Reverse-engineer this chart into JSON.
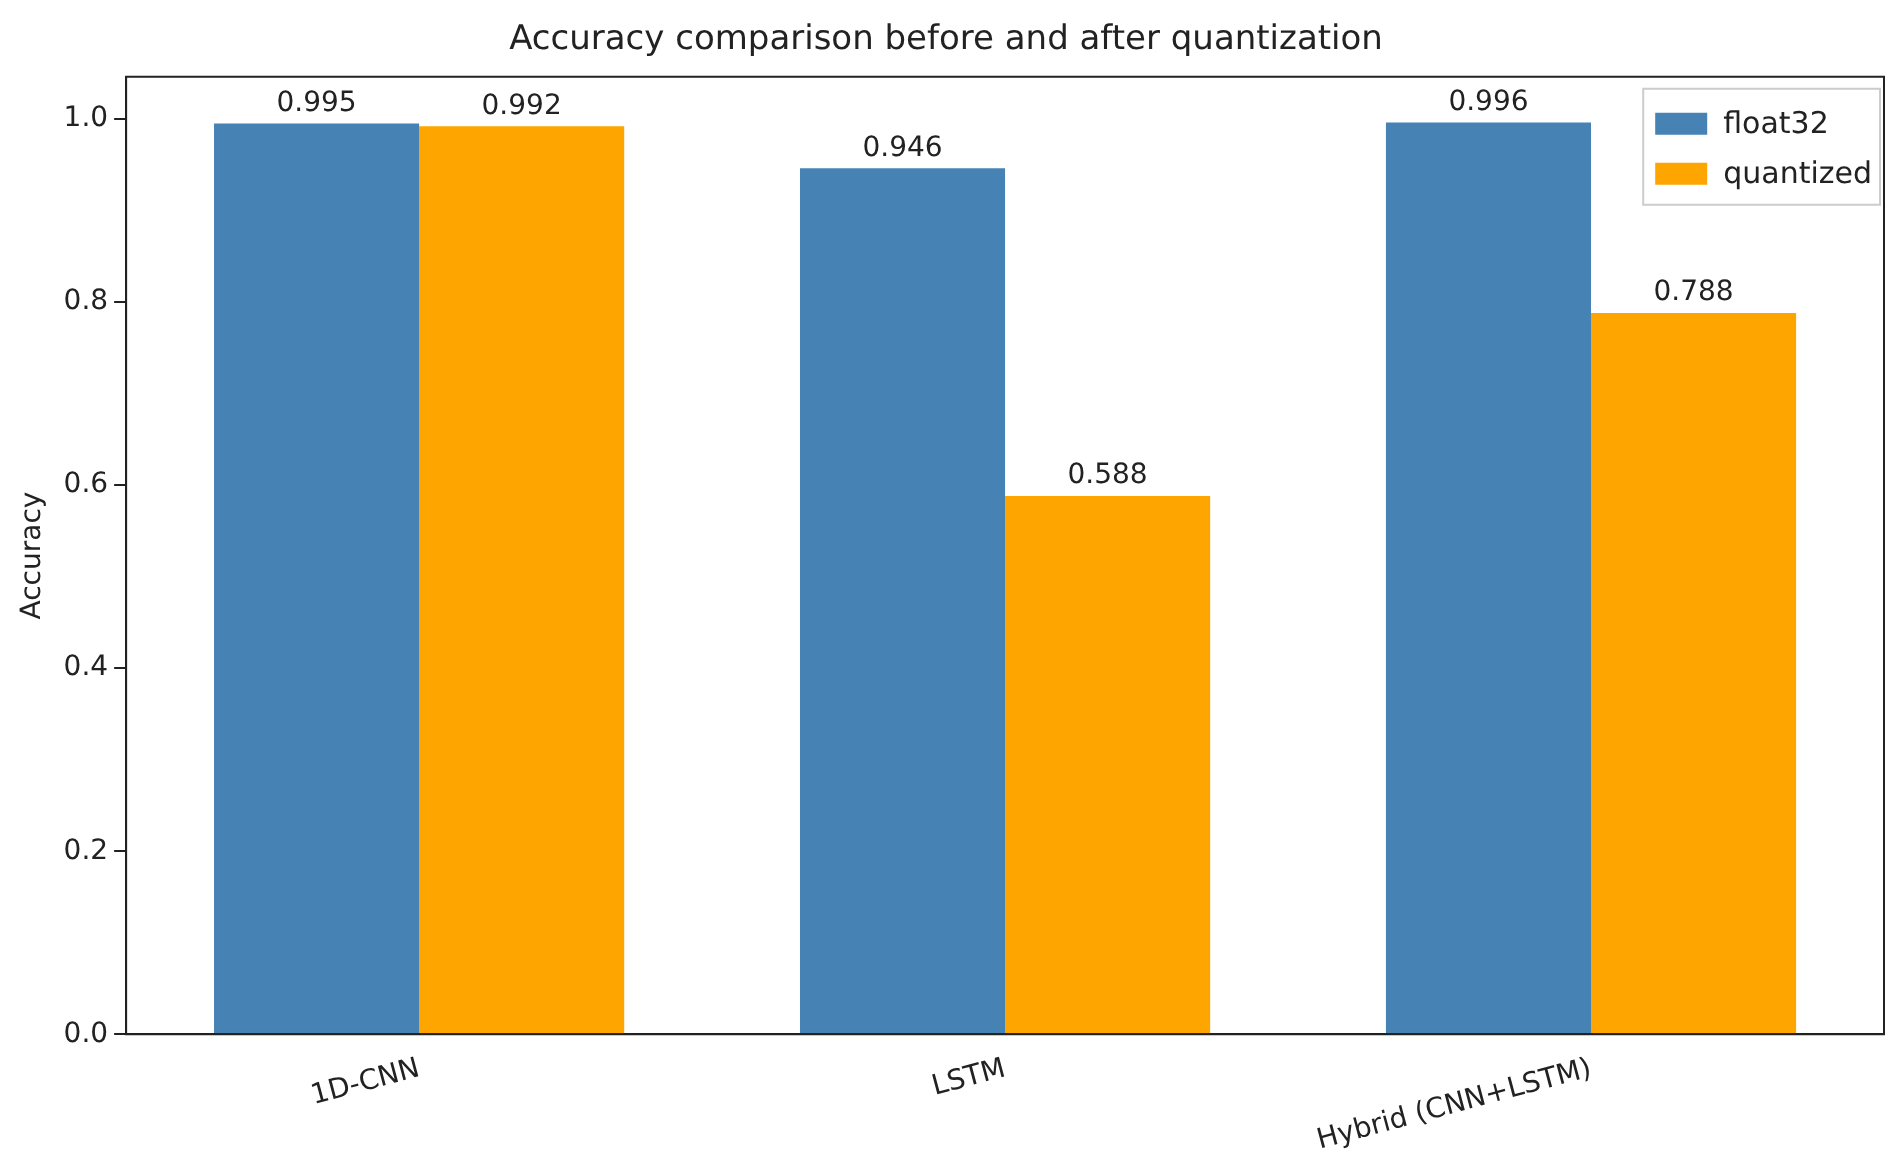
{
  "chart_data": {
    "type": "bar",
    "title": "Accuracy comparison before and after quantization",
    "ylabel": "Accuracy",
    "categories": [
      "1D-CNN",
      "LSTM",
      "Hybrid (CNN+LSTM)"
    ],
    "series": [
      {
        "name": "float32",
        "color": "#4682b4",
        "values": [
          0.995,
          0.946,
          0.996
        ]
      },
      {
        "name": "quantized",
        "color": "#ffa500",
        "values": [
          0.992,
          0.588,
          0.788
        ]
      }
    ],
    "ylim": [
      0,
      1.046
    ],
    "yticks": [
      {
        "value": 0,
        "label": "0.0"
      },
      {
        "value": 0.2,
        "label": "0.2"
      },
      {
        "value": 0.4,
        "label": "0.4"
      },
      {
        "value": 0.6,
        "label": "0.6"
      },
      {
        "value": 0.8,
        "label": "0.8"
      },
      {
        "value": 1,
        "label": "1.0"
      }
    ],
    "grid": false,
    "legend": "top right",
    "data_labels": true
  }
}
